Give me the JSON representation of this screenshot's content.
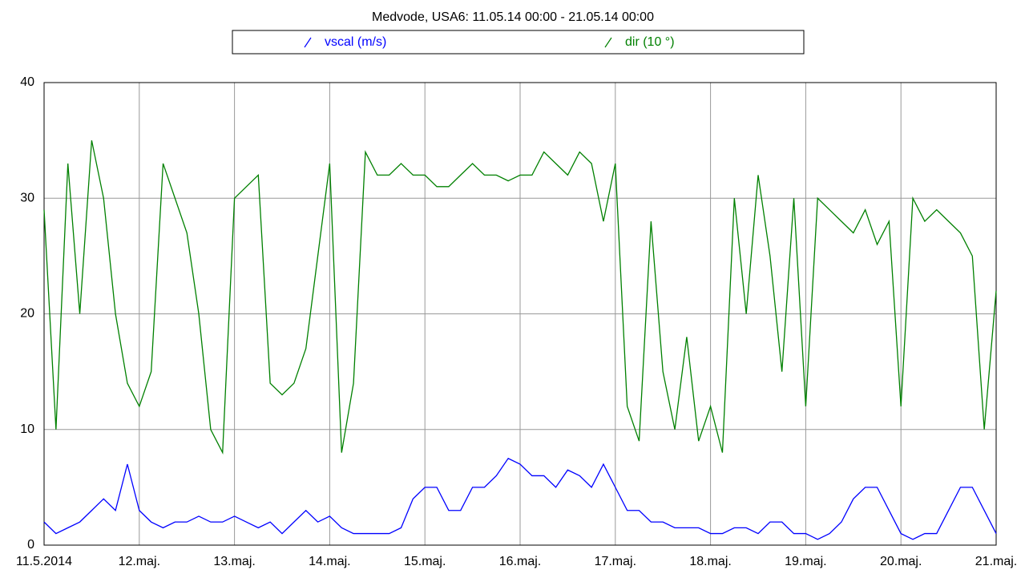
{
  "chart_data": {
    "type": "line",
    "title": "Medvode, USA6: 11.05.14 00:00 - 21.05.14 00:00",
    "x": [
      0,
      0.125,
      0.25,
      0.375,
      0.5,
      0.625,
      0.75,
      0.875,
      1,
      1.125,
      1.25,
      1.375,
      1.5,
      1.625,
      1.75,
      1.875,
      2,
      2.125,
      2.25,
      2.375,
      2.5,
      2.625,
      2.75,
      2.875,
      3,
      3.125,
      3.25,
      3.375,
      3.5,
      3.625,
      3.75,
      3.875,
      4,
      4.125,
      4.25,
      4.375,
      4.5,
      4.625,
      4.75,
      4.875,
      5,
      5.125,
      5.25,
      5.375,
      5.5,
      5.625,
      5.75,
      5.875,
      6,
      6.125,
      6.25,
      6.375,
      6.5,
      6.625,
      6.75,
      6.875,
      7,
      7.125,
      7.25,
      7.375,
      7.5,
      7.625,
      7.75,
      7.875,
      8,
      8.125,
      8.25,
      8.375,
      8.5,
      8.625,
      8.75,
      8.875,
      9,
      9.125,
      9.25,
      9.375,
      9.5,
      9.625,
      9.75,
      9.875,
      10
    ],
    "series": [
      {
        "name": "vscal (m/s)",
        "color": "#0000ff",
        "values": [
          2,
          1,
          1.5,
          2,
          3,
          4,
          3,
          7,
          3,
          2,
          1.5,
          2,
          2,
          2.5,
          2,
          2,
          2.5,
          2,
          1.5,
          2,
          1,
          2,
          3,
          2,
          2.5,
          1.5,
          1,
          1,
          1,
          1,
          1.5,
          4,
          5,
          5,
          3,
          3,
          5,
          5,
          6,
          7.5,
          7,
          6,
          6,
          5,
          6.5,
          6,
          5,
          7,
          5,
          3,
          3,
          2,
          2,
          1.5,
          1.5,
          1.5,
          1,
          1,
          1.5,
          1.5,
          1,
          2,
          2,
          1,
          1,
          0.5,
          1,
          2,
          4,
          5,
          5,
          3,
          1,
          0.5,
          1,
          1,
          3,
          5,
          5,
          3,
          1
        ]
      },
      {
        "name": "dir (10 °)",
        "color": "#008000",
        "values": [
          29,
          10,
          33,
          20,
          35,
          30,
          20,
          14,
          12,
          15,
          33,
          30,
          27,
          20,
          10,
          8,
          30,
          31,
          32,
          14,
          13,
          14,
          17,
          25,
          33,
          8,
          14,
          34,
          32,
          32,
          33,
          32,
          32,
          31,
          31,
          32,
          33,
          32,
          32,
          31.5,
          32,
          32,
          34,
          33,
          32,
          34,
          33,
          28,
          33,
          12,
          9,
          28,
          15,
          10,
          18,
          9,
          12,
          8,
          30,
          20,
          32,
          25,
          15,
          30,
          12,
          30,
          29,
          28,
          27,
          29,
          26,
          28,
          12,
          30,
          28,
          29,
          28,
          27,
          25,
          10,
          22
        ]
      }
    ],
    "xlim": [
      0,
      10
    ],
    "xticks": [
      {
        "value": 0,
        "label": "11.5.2014"
      },
      {
        "value": 1,
        "label": "12.maj."
      },
      {
        "value": 2,
        "label": "13.maj."
      },
      {
        "value": 3,
        "label": "14.maj."
      },
      {
        "value": 4,
        "label": "15.maj."
      },
      {
        "value": 5,
        "label": "16.maj."
      },
      {
        "value": 6,
        "label": "17.maj."
      },
      {
        "value": 7,
        "label": "18.maj."
      },
      {
        "value": 8,
        "label": "19.maj."
      },
      {
        "value": 9,
        "label": "20.maj."
      },
      {
        "value": 10,
        "label": "21.maj."
      }
    ],
    "ylim": [
      0,
      40
    ],
    "yticks": [
      0,
      10,
      20,
      30,
      40
    ],
    "grid": true
  }
}
